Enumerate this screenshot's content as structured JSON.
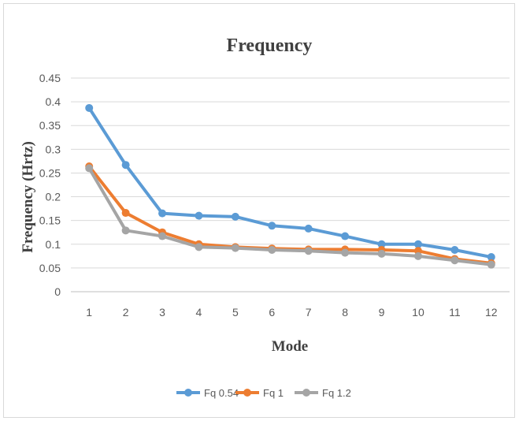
{
  "chart_data": {
    "type": "line",
    "title": "Frequency",
    "xlabel": "Mode",
    "ylabel": "Frequency (Hrtz)",
    "x": [
      1,
      2,
      3,
      4,
      5,
      6,
      7,
      8,
      9,
      10,
      11,
      12
    ],
    "ylim": [
      0,
      0.45
    ],
    "yticks": [
      "0",
      "0.05",
      "0.1",
      "0.15",
      "0.2",
      "0.25",
      "0.3",
      "0.35",
      "0.4",
      "0.45"
    ],
    "grid": true,
    "legend_position": "bottom",
    "series": [
      {
        "name": "Fq 0.54",
        "color": "#5B9BD5",
        "values": [
          0.387,
          0.267,
          0.165,
          0.16,
          0.158,
          0.139,
          0.133,
          0.117,
          0.1,
          0.1,
          0.088,
          0.073
        ]
      },
      {
        "name": "Fq 1",
        "color": "#ED7D31",
        "values": [
          0.264,
          0.166,
          0.125,
          0.1,
          0.094,
          0.091,
          0.089,
          0.089,
          0.088,
          0.086,
          0.069,
          0.06
        ]
      },
      {
        "name": "Fq 1.2",
        "color": "#A5A5A5",
        "values": [
          0.26,
          0.129,
          0.117,
          0.094,
          0.092,
          0.088,
          0.086,
          0.082,
          0.08,
          0.075,
          0.066,
          0.057
        ]
      }
    ]
  }
}
